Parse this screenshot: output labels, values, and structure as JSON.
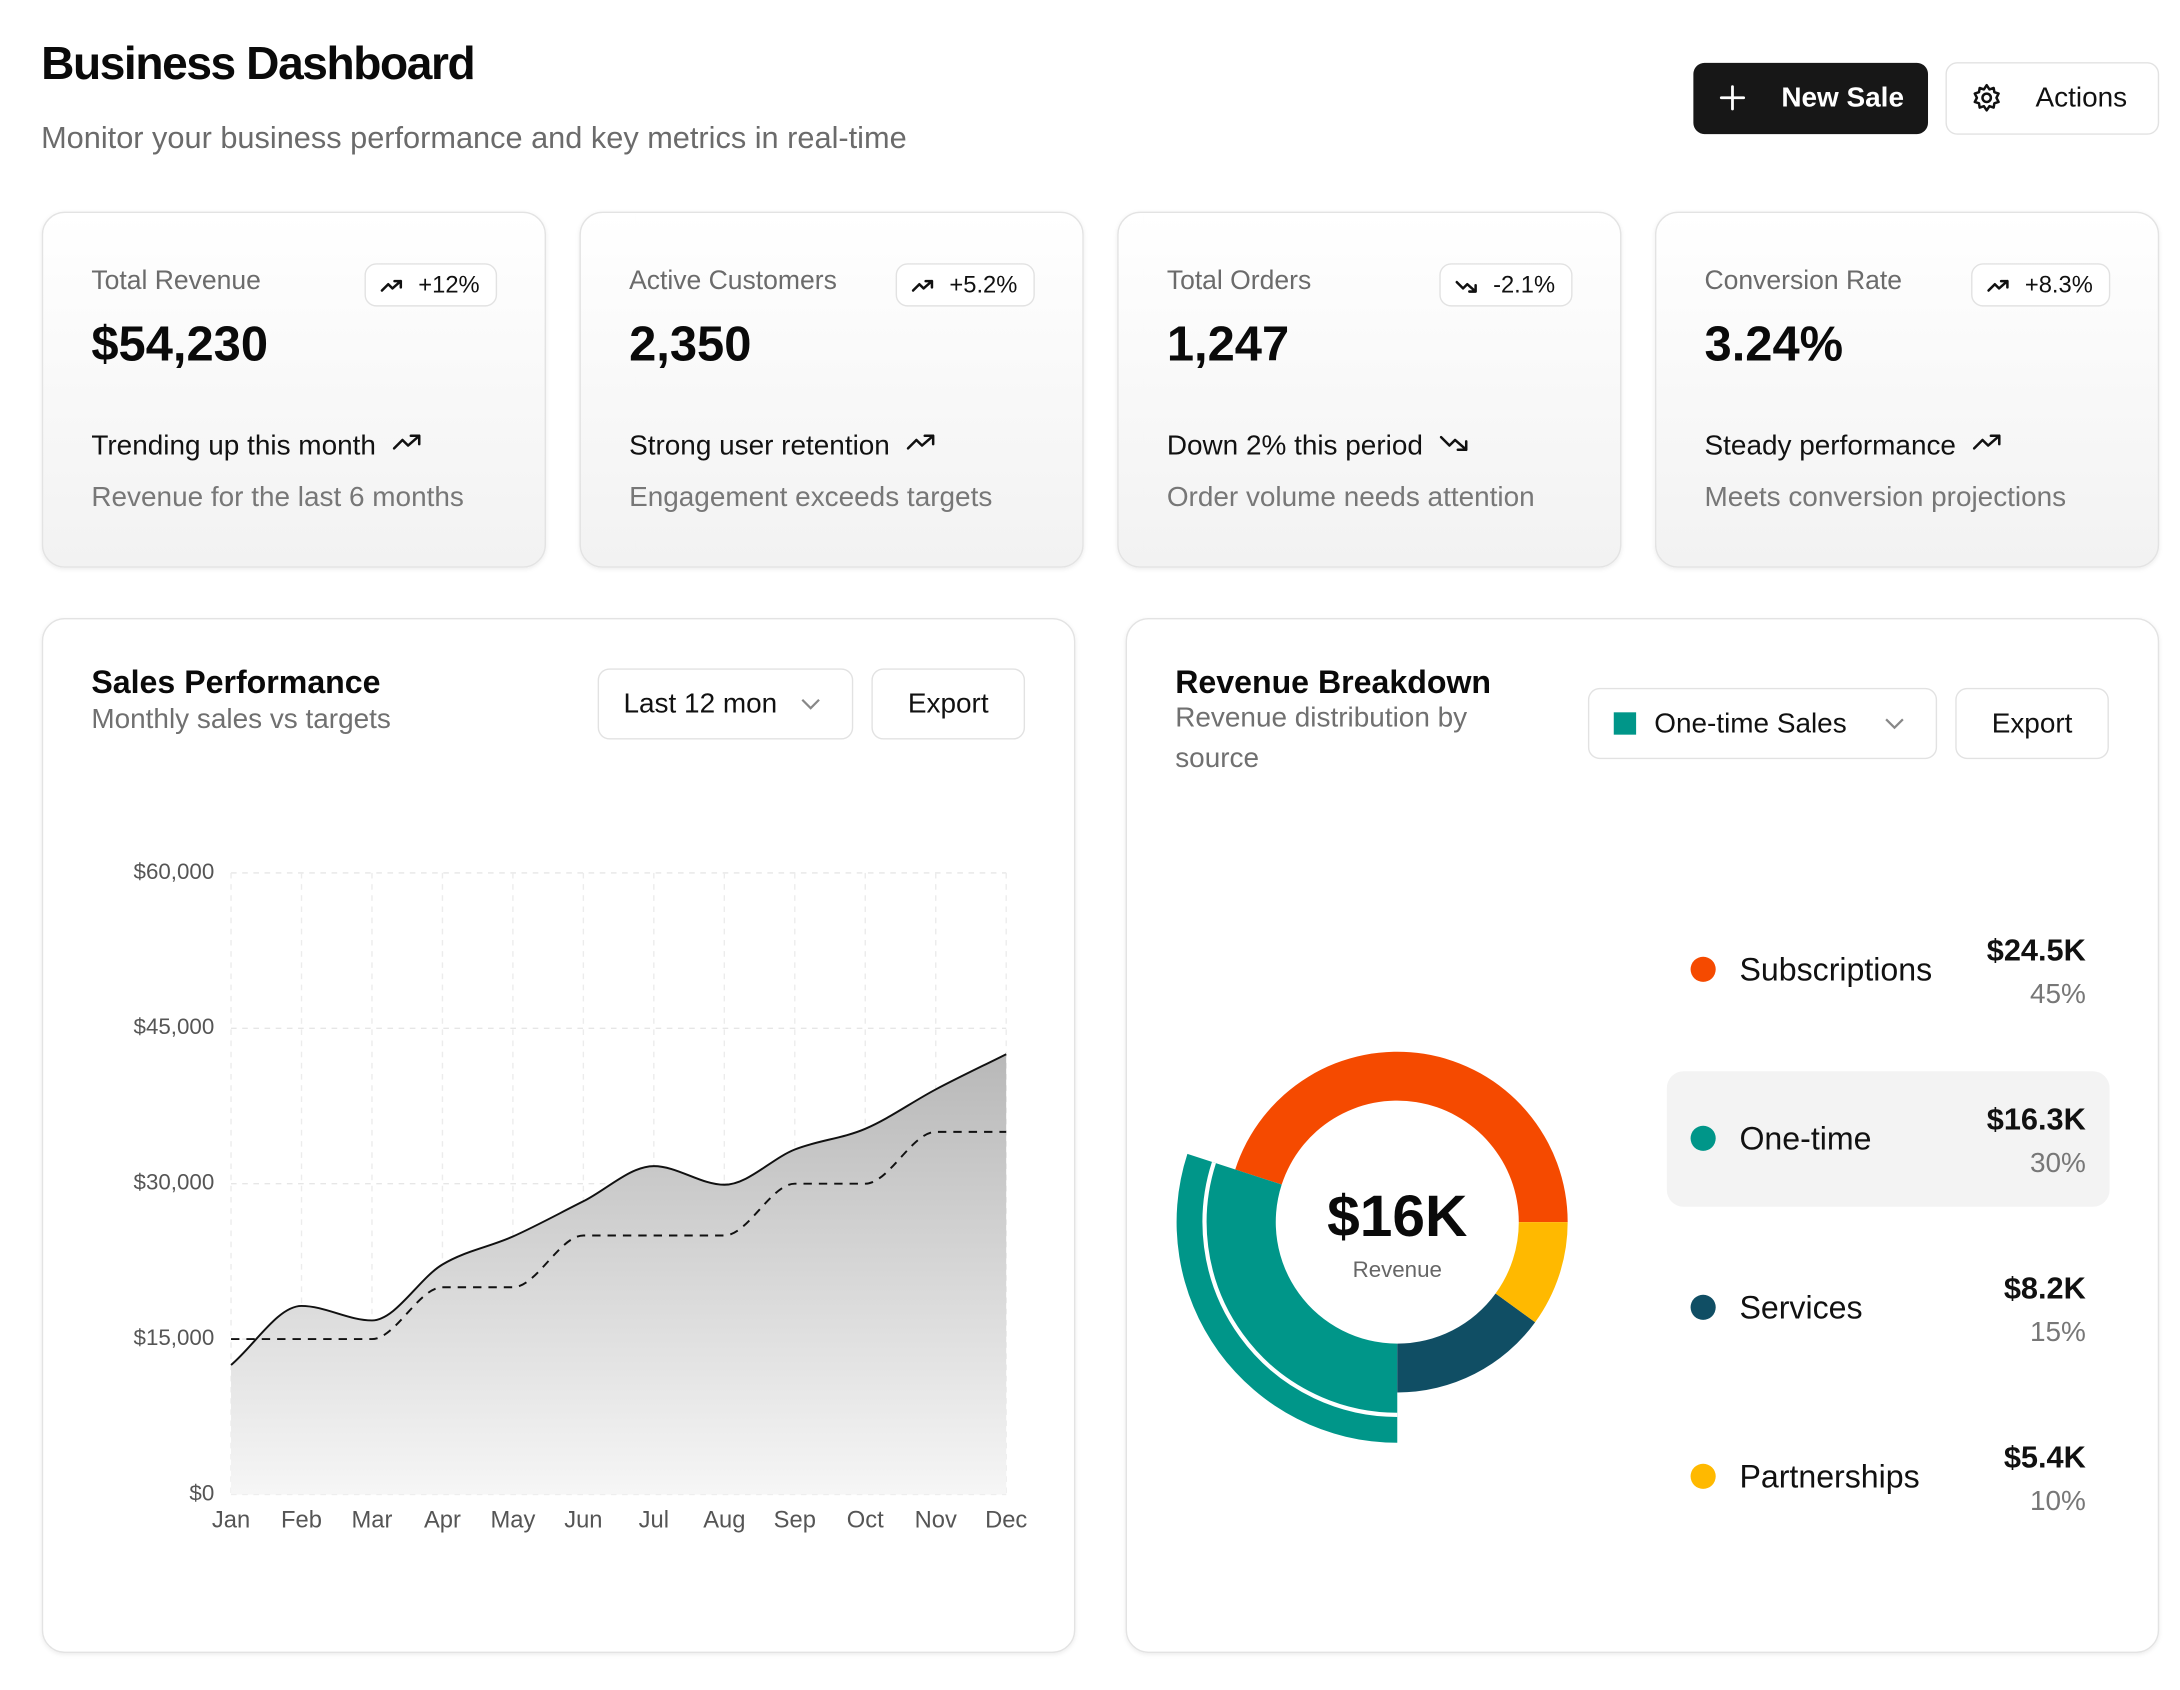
{
  "header": {
    "title": "Business Dashboard",
    "subtitle": "Monitor your business performance and key metrics in real-time",
    "actions": [
      "New Sale",
      "Actions"
    ]
  },
  "kpis": [
    {
      "label": "Total Revenue",
      "change": "+12%",
      "value": "$54,230",
      "trend": "up",
      "trend_text": "Trending up this month",
      "note": "Revenue for the last 6 months"
    },
    {
      "label": "Active Customers",
      "change": "+5.2%",
      "value": "2,350",
      "trend": "up",
      "trend_text": "Strong user retention",
      "note": "Engagement exceeds targets"
    },
    {
      "label": "Total Orders",
      "change": "-2.1%",
      "value": "1,247",
      "trend": "down",
      "trend_text": "Down 2% this period",
      "note": "Order volume needs attention"
    },
    {
      "label": "Conversion Rate",
      "change": "+8.3%",
      "value": "3.24%",
      "trend": "up",
      "trend_text": "Steady performance",
      "note": "Meets conversion projections"
    }
  ],
  "chart_data": [
    {
      "type": "line",
      "title": "Sales Performance",
      "subtitle": "Monthly sales vs targets",
      "range_select": "Last 12 mon",
      "export": "Export",
      "categories": [
        "Jan",
        "Feb",
        "Mar",
        "Apr",
        "May",
        "Jun",
        "Jul",
        "Aug",
        "Sep",
        "Oct",
        "Nov",
        "Dec"
      ],
      "series": [
        {
          "color": "#111111",
          "style": "solid",
          "fill": true,
          "values": [
            12500,
            18200,
            16800,
            22200,
            24900,
            28300,
            31700,
            29900,
            33300,
            35300,
            39100,
            42500
          ]
        },
        {
          "color": "#111111",
          "style": "dashed",
          "fill": false,
          "values": [
            15000,
            15000,
            15000,
            20000,
            20000,
            25000,
            25000,
            25000,
            30000,
            30000,
            35000,
            35000
          ]
        }
      ],
      "ylim": [
        0,
        60000
      ],
      "yticks": [
        {
          "value": 0,
          "label": "$0"
        },
        {
          "value": 15000,
          "label": "$15,000"
        },
        {
          "value": 30000,
          "label": "$30,000"
        },
        {
          "value": 45000,
          "label": "$45,000"
        },
        {
          "value": 60000,
          "label": "$60,000"
        }
      ],
      "grid": true
    },
    {
      "type": "donut",
      "title": "Revenue Breakdown",
      "subtitle": "Revenue distribution by source",
      "selected": "One-time Sales",
      "export": "Export",
      "categories": [
        "Subscriptions",
        "One-time",
        "Services",
        "Partnerships"
      ],
      "values": [
        45,
        30,
        15,
        10
      ],
      "value_labels": [
        "45%",
        "30%",
        "15%",
        "10%"
      ],
      "amounts": [
        "$24.5K",
        "$16.3K",
        "$8.2K",
        "$5.4K"
      ],
      "colors": [
        "#f54a00",
        "#009689",
        "#104e64",
        "#ffb900"
      ],
      "highlight": "One-time",
      "center_value": "$16K",
      "center_label": "Revenue"
    }
  ]
}
